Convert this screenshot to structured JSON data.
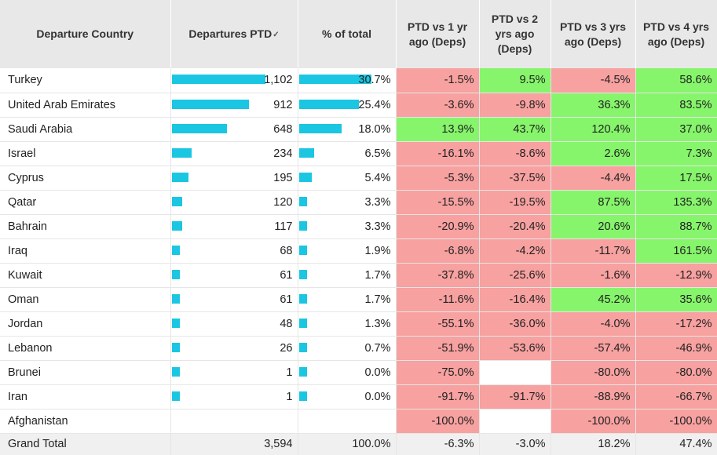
{
  "headers": {
    "country": "Departure Country",
    "departures": "Departures PTD",
    "pct_total": "% of total",
    "vs1": "PTD vs 1 yr ago (Deps)",
    "vs2": "PTD vs 2 yrs ago (Deps)",
    "vs3": "PTD vs 3 yrs ago (Deps)",
    "vs4": "PTD vs 4 yrs ago (Deps)"
  },
  "icons": {
    "sort": "sort-descending-icon"
  },
  "colors": {
    "bar": "#1bc6e2",
    "positive": "#86f56b",
    "negative": "#f7a1a0"
  },
  "rows": [
    {
      "country": "Turkey",
      "departures": "1,102",
      "dep_value": 1102,
      "pct": "30.7%",
      "pct_value": 30.7,
      "vs1": "-1.5%",
      "vs2": "9.5%",
      "vs3": "-4.5%",
      "vs4": "58.6%"
    },
    {
      "country": "United Arab Emirates",
      "departures": "912",
      "dep_value": 912,
      "pct": "25.4%",
      "pct_value": 25.4,
      "vs1": "-3.6%",
      "vs2": "-9.8%",
      "vs3": "36.3%",
      "vs4": "83.5%"
    },
    {
      "country": "Saudi Arabia",
      "departures": "648",
      "dep_value": 648,
      "pct": "18.0%",
      "pct_value": 18.0,
      "vs1": "13.9%",
      "vs2": "43.7%",
      "vs3": "120.4%",
      "vs4": "37.0%"
    },
    {
      "country": "Israel",
      "departures": "234",
      "dep_value": 234,
      "pct": "6.5%",
      "pct_value": 6.5,
      "vs1": "-16.1%",
      "vs2": "-8.6%",
      "vs3": "2.6%",
      "vs4": "7.3%"
    },
    {
      "country": "Cyprus",
      "departures": "195",
      "dep_value": 195,
      "pct": "5.4%",
      "pct_value": 5.4,
      "vs1": "-5.3%",
      "vs2": "-37.5%",
      "vs3": "-4.4%",
      "vs4": "17.5%"
    },
    {
      "country": "Qatar",
      "departures": "120",
      "dep_value": 120,
      "pct": "3.3%",
      "pct_value": 3.3,
      "vs1": "-15.5%",
      "vs2": "-19.5%",
      "vs3": "87.5%",
      "vs4": "135.3%"
    },
    {
      "country": "Bahrain",
      "departures": "117",
      "dep_value": 117,
      "pct": "3.3%",
      "pct_value": 3.3,
      "vs1": "-20.9%",
      "vs2": "-20.4%",
      "vs3": "20.6%",
      "vs4": "88.7%"
    },
    {
      "country": "Iraq",
      "departures": "68",
      "dep_value": 68,
      "pct": "1.9%",
      "pct_value": 1.9,
      "vs1": "-6.8%",
      "vs2": "-4.2%",
      "vs3": "-11.7%",
      "vs4": "161.5%"
    },
    {
      "country": "Kuwait",
      "departures": "61",
      "dep_value": 61,
      "pct": "1.7%",
      "pct_value": 1.7,
      "vs1": "-37.8%",
      "vs2": "-25.6%",
      "vs3": "-1.6%",
      "vs4": "-12.9%"
    },
    {
      "country": "Oman",
      "departures": "61",
      "dep_value": 61,
      "pct": "1.7%",
      "pct_value": 1.7,
      "vs1": "-11.6%",
      "vs2": "-16.4%",
      "vs3": "45.2%",
      "vs4": "35.6%"
    },
    {
      "country": "Jordan",
      "departures": "48",
      "dep_value": 48,
      "pct": "1.3%",
      "pct_value": 1.3,
      "vs1": "-55.1%",
      "vs2": "-36.0%",
      "vs3": "-4.0%",
      "vs4": "-17.2%"
    },
    {
      "country": "Lebanon",
      "departures": "26",
      "dep_value": 26,
      "pct": "0.7%",
      "pct_value": 0.7,
      "vs1": "-51.9%",
      "vs2": "-53.6%",
      "vs3": "-57.4%",
      "vs4": "-46.9%"
    },
    {
      "country": "Brunei",
      "departures": "1",
      "dep_value": 1,
      "pct": "0.0%",
      "pct_value": 0.0,
      "vs1": "-75.0%",
      "vs2": "",
      "vs3": "-80.0%",
      "vs4": "-80.0%"
    },
    {
      "country": "Iran",
      "departures": "1",
      "dep_value": 1,
      "pct": "0.0%",
      "pct_value": 0.0,
      "vs1": "-91.7%",
      "vs2": "-91.7%",
      "vs3": "-88.9%",
      "vs4": "-66.7%"
    },
    {
      "country": "Afghanistan",
      "departures": "",
      "dep_value": null,
      "pct": "",
      "pct_value": null,
      "vs1": "-100.0%",
      "vs2": "",
      "vs3": "-100.0%",
      "vs4": "-100.0%"
    }
  ],
  "total": {
    "label": "Grand Total",
    "departures": "3,594",
    "pct": "100.0%",
    "vs1": "-6.3%",
    "vs2": "-3.0%",
    "vs3": "18.2%",
    "vs4": "47.4%"
  }
}
